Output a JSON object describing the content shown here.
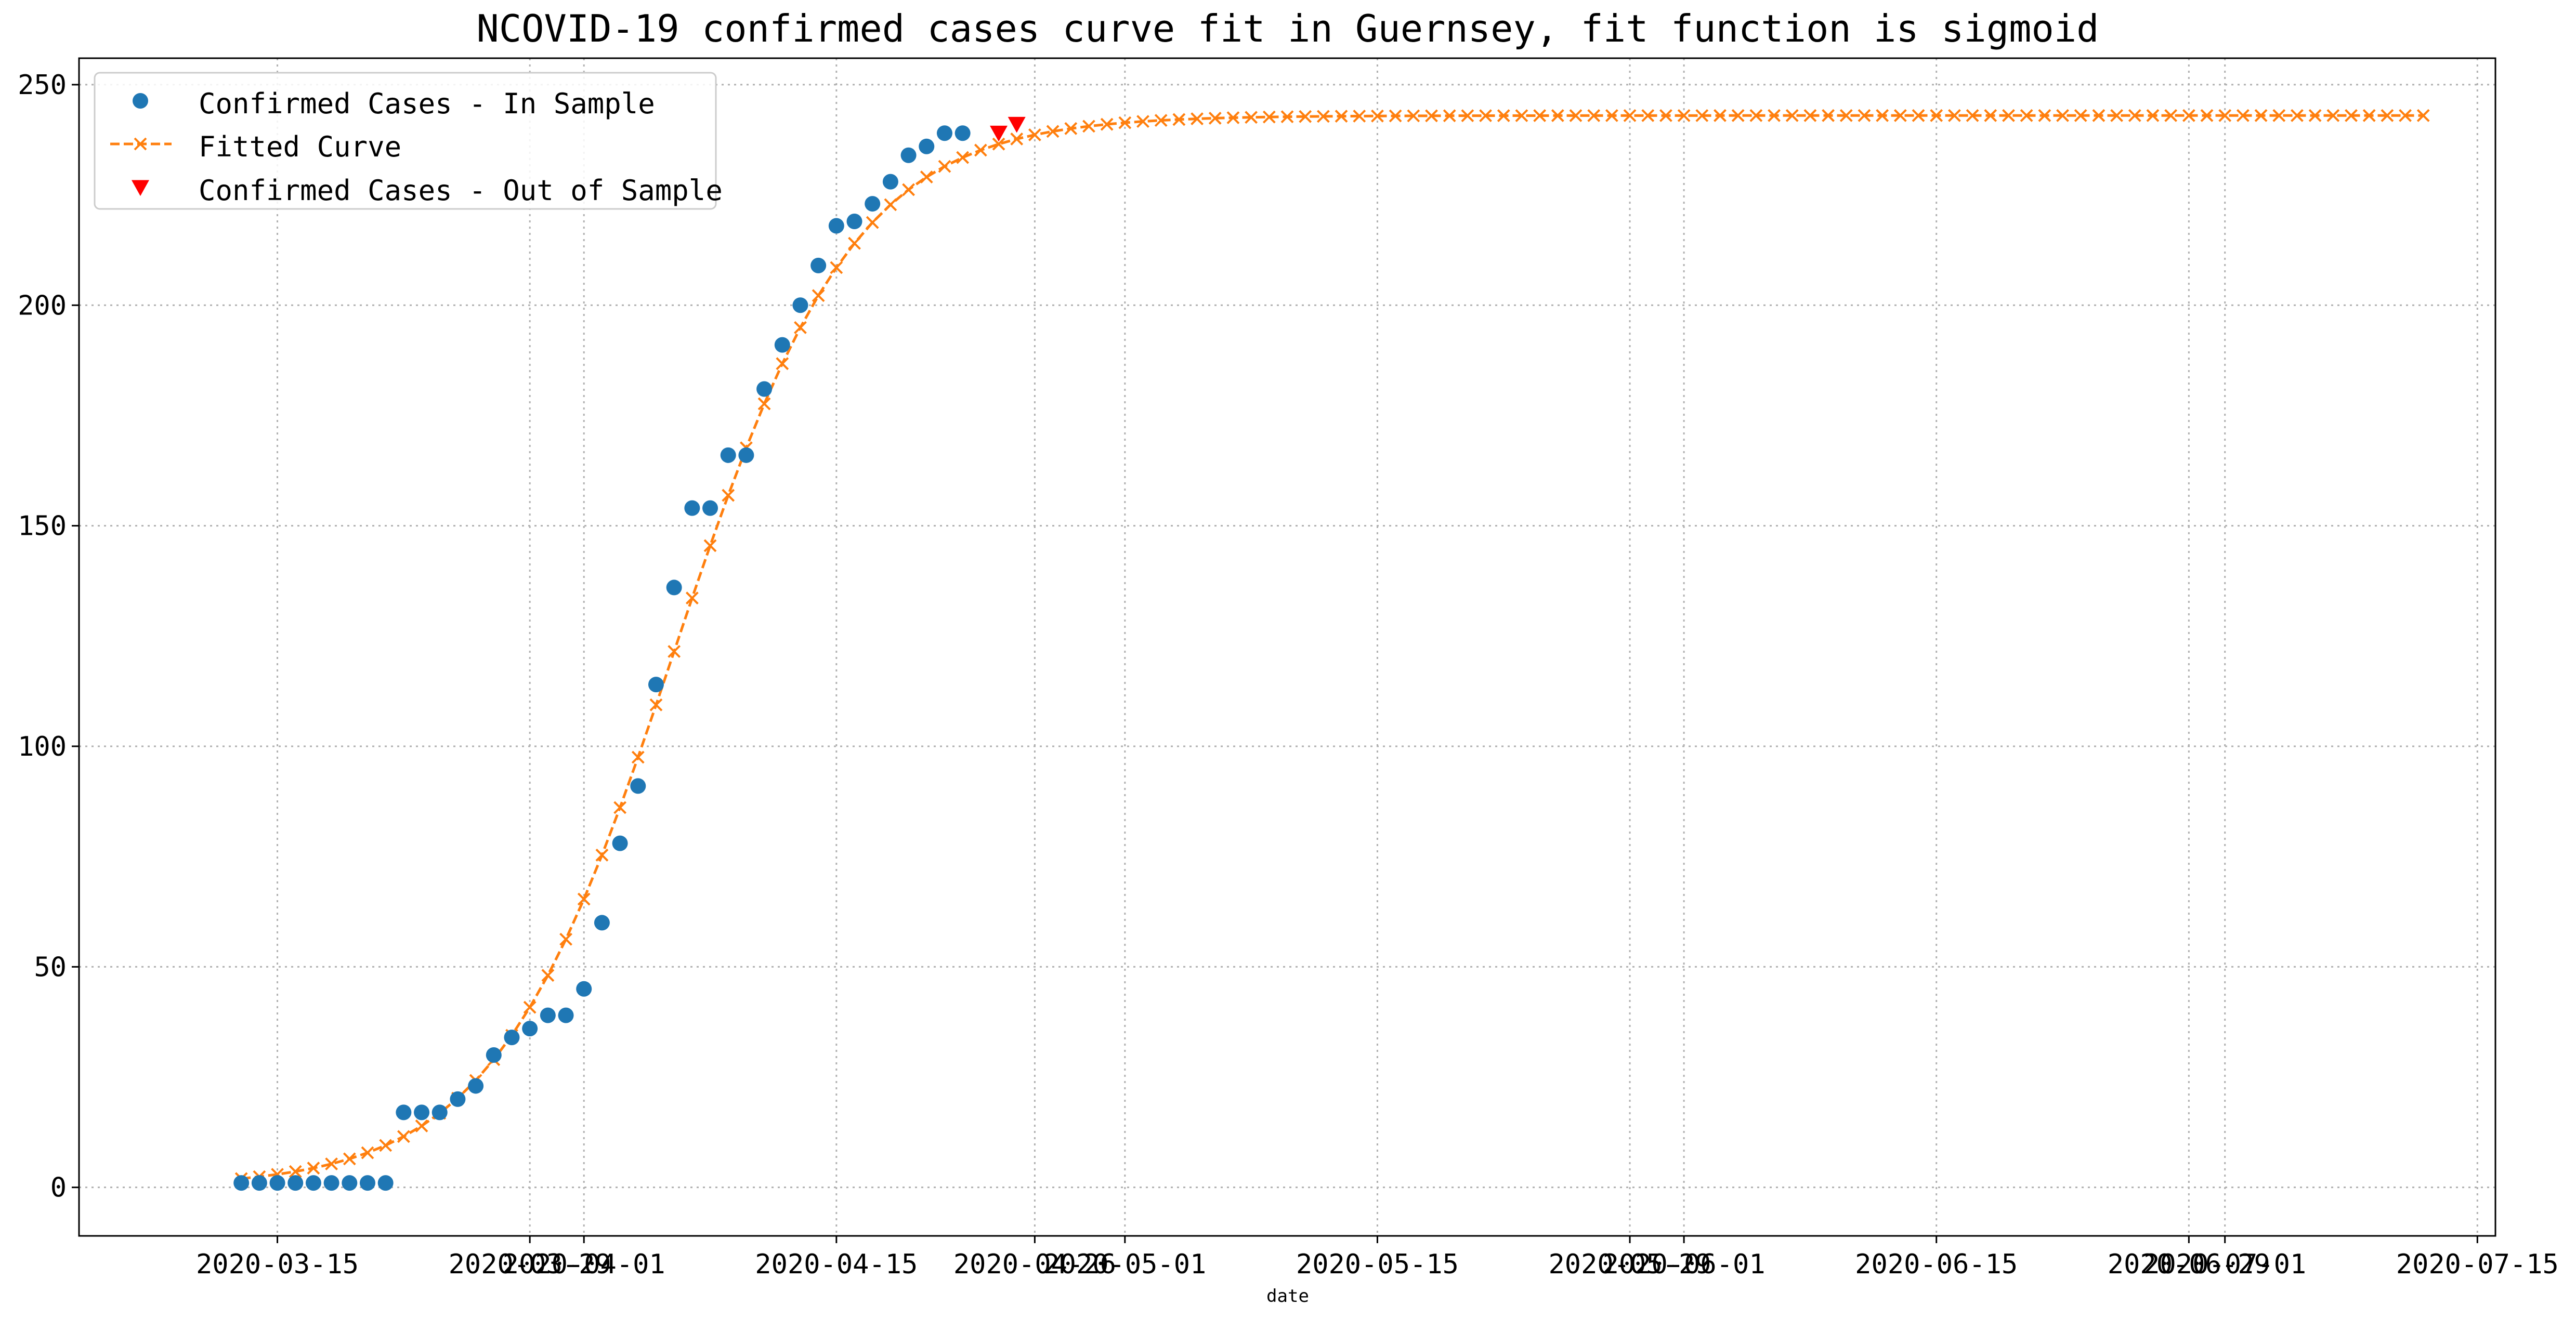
{
  "chart_data": {
    "type": "line",
    "title": "NCOVID-19 confirmed cases curve fit in Guernsey, fit function is sigmoid",
    "xlabel": "date",
    "ylabel": "",
    "grid": true,
    "legend_position": "top-left",
    "xlim": [
      "2020-03-04",
      "2020-07-16"
    ],
    "ylim": [
      -11,
      256
    ],
    "x_ticks": [
      {
        "date": "2020-03-15",
        "label": "2020-03-15"
      },
      {
        "date": "2020-03-29",
        "label": "2020-03-29"
      },
      {
        "date": "2020-04-01",
        "label": "2020-04-01"
      },
      {
        "date": "2020-04-15",
        "label": "2020-04-15"
      },
      {
        "date": "2020-04-26",
        "label": "2020-04-26"
      },
      {
        "date": "2020-05-01",
        "label": "2020-05-01"
      },
      {
        "date": "2020-05-15",
        "label": "2020-05-15"
      },
      {
        "date": "2020-05-29",
        "label": "2020-05-29"
      },
      {
        "date": "2020-06-01",
        "label": "2020-06-01"
      },
      {
        "date": "2020-06-15",
        "label": "2020-06-15"
      },
      {
        "date": "2020-06-29",
        "label": "2020-06-29"
      },
      {
        "date": "2020-07-01",
        "label": "2020-07-01"
      },
      {
        "date": "2020-07-15",
        "label": "2020-07-15"
      }
    ],
    "y_ticks": [
      0,
      50,
      100,
      150,
      200,
      250
    ],
    "series": [
      {
        "name": "Confirmed Cases - In Sample",
        "style": "points-circle",
        "color": "#1f77b4",
        "start_date": "2020-03-13",
        "values": [
          1,
          1,
          1,
          1,
          1,
          1,
          1,
          1,
          1,
          17,
          17,
          17,
          20,
          23,
          30,
          34,
          36,
          39,
          39,
          45,
          60,
          78,
          91,
          114,
          136,
          154,
          154,
          166,
          166,
          181,
          191,
          200,
          209,
          218,
          219,
          223,
          228,
          234,
          236,
          239,
          239
        ]
      },
      {
        "name": "Fitted Curve",
        "style": "dashed-line-x-markers",
        "color": "#ff7f0e",
        "start_date": "2020-03-13",
        "end_date": "2020-07-12",
        "sigmoid": {
          "L": 243,
          "k": 0.2,
          "x0_date": "2020-04-06"
        }
      },
      {
        "name": "Confirmed Cases - Out of Sample",
        "style": "points-triangle-down",
        "color": "#ff0000",
        "start_date": "2020-04-24",
        "values": [
          239,
          241
        ]
      }
    ]
  }
}
